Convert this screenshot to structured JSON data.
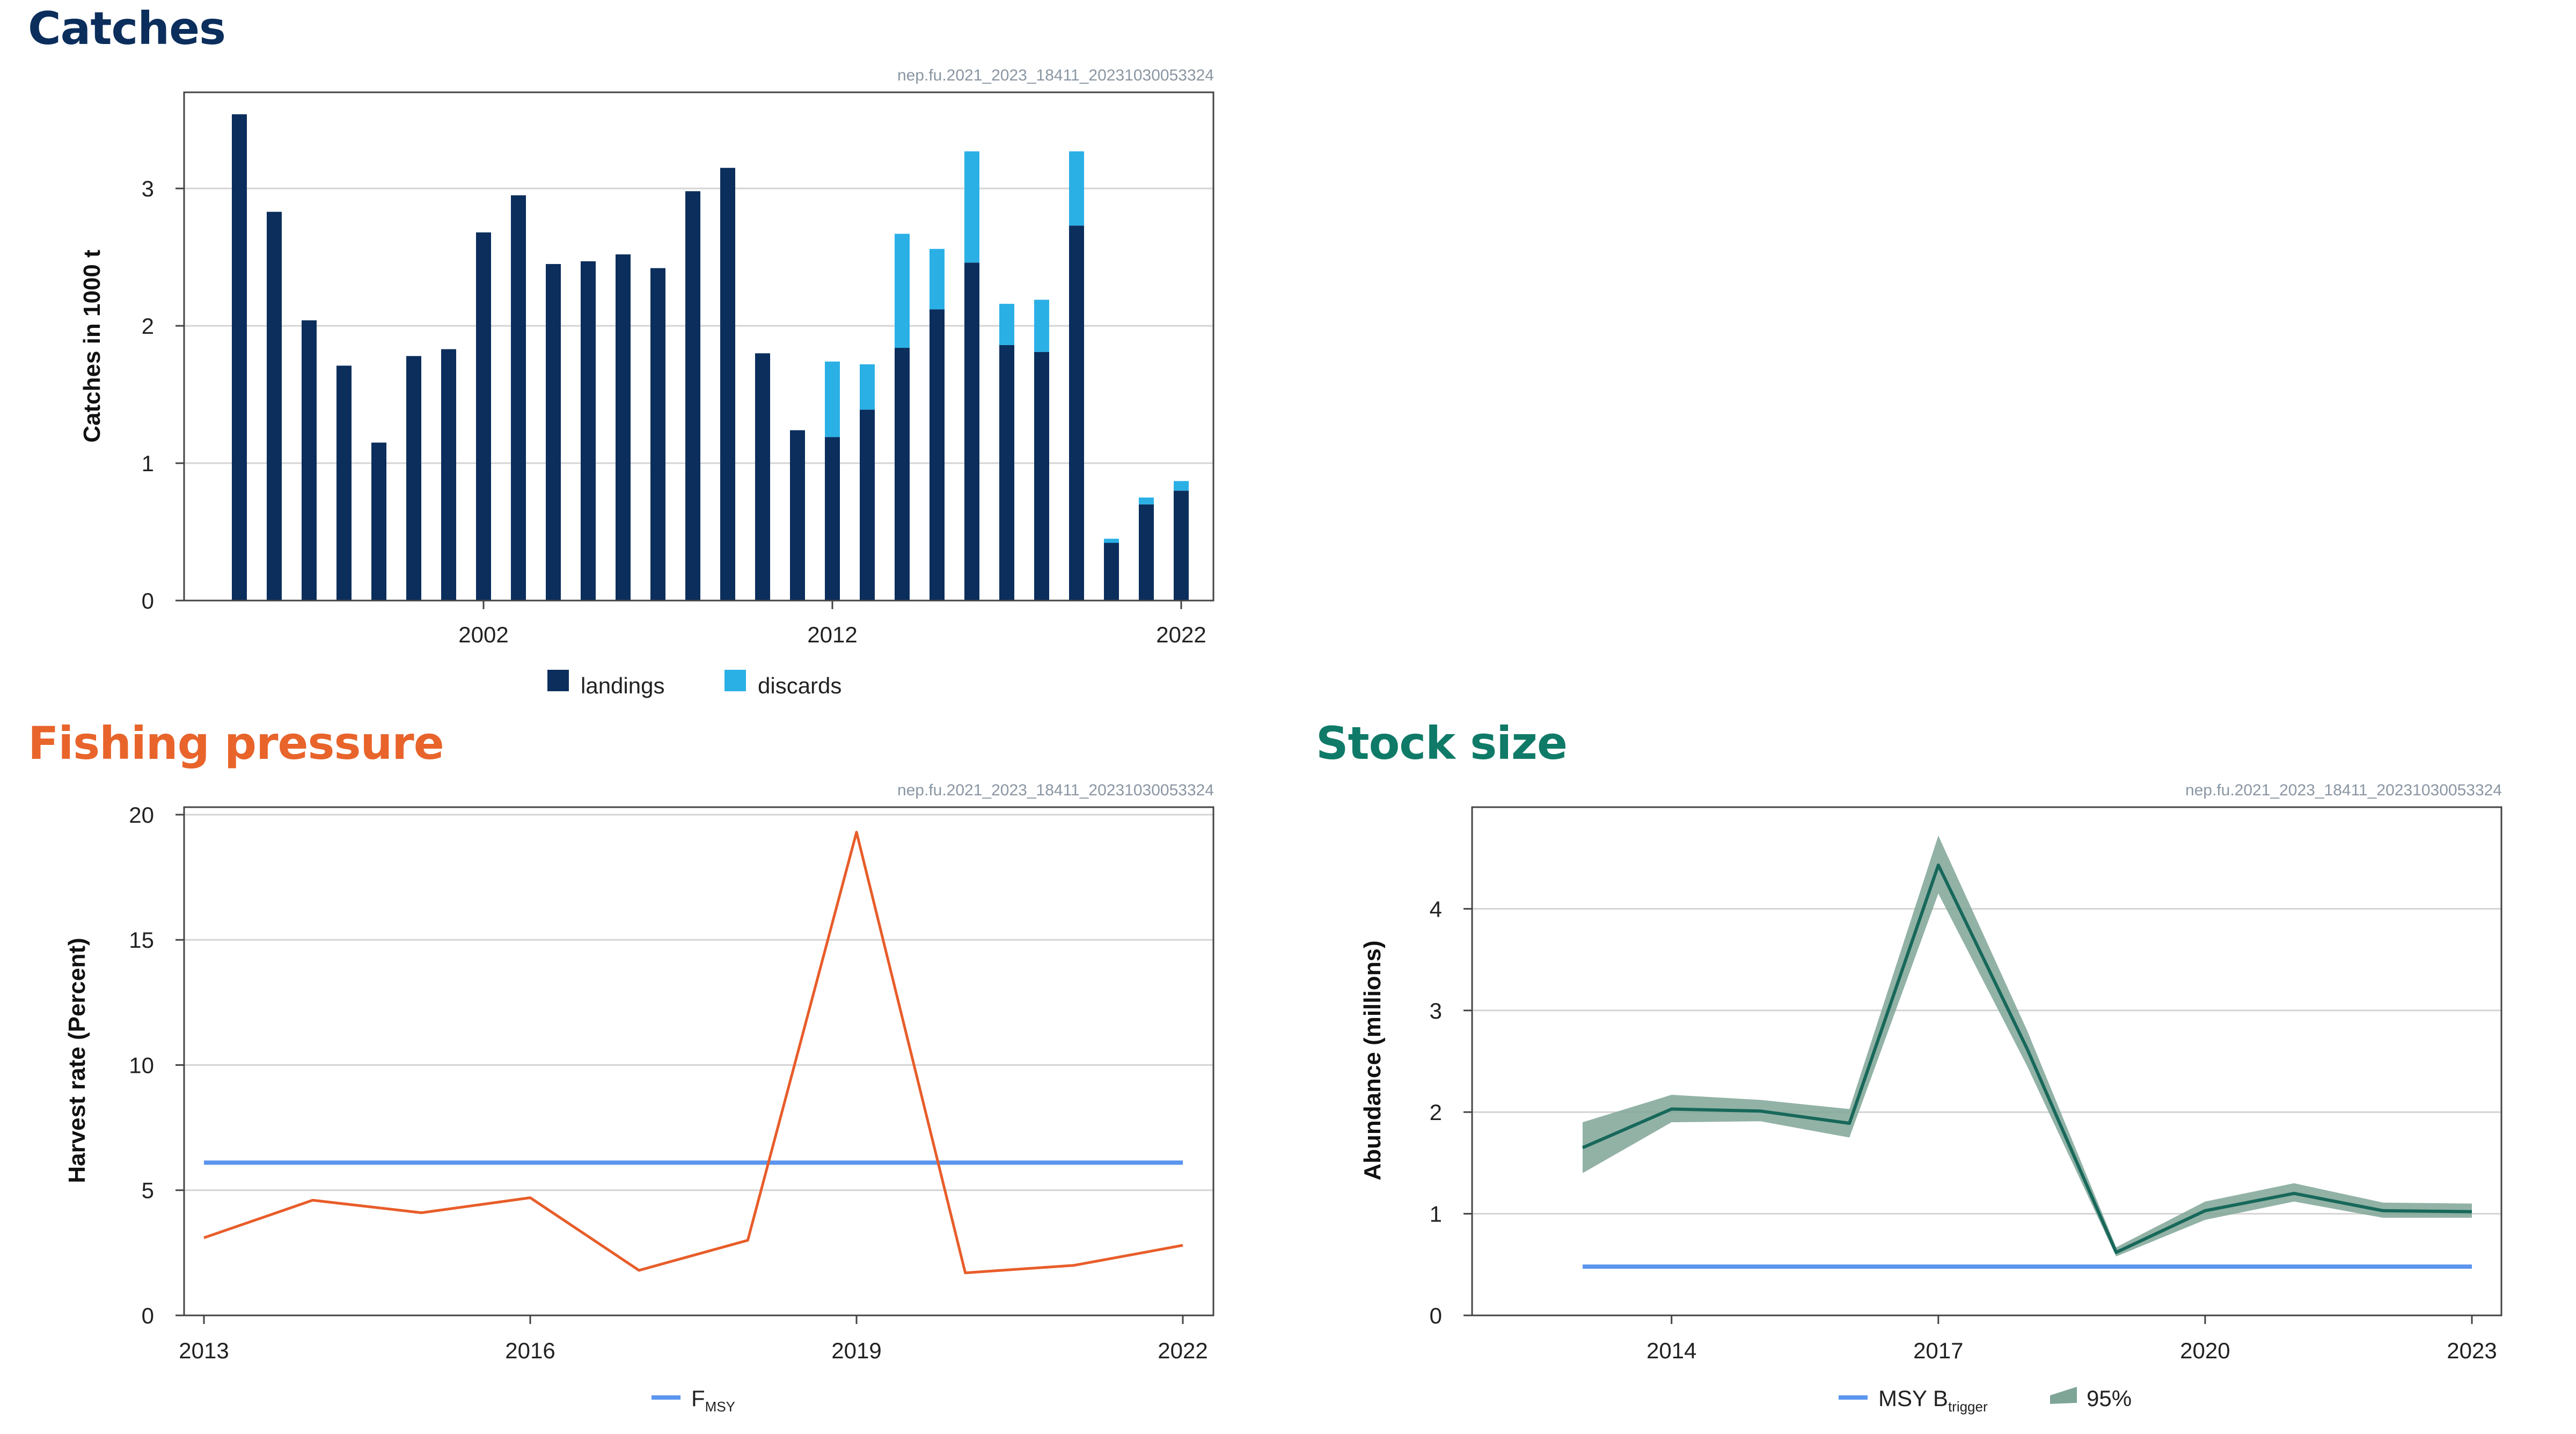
{
  "colors": {
    "catches_title": "#0b2e5c",
    "fishing_title": "#e8642b",
    "stock_title": "#0f7a68",
    "landings": "#0b2e5c",
    "discards": "#2bb0e6",
    "harvest_line": "#e85d2a",
    "reference_line": "#5b95ee",
    "abundance_line": "#17685a",
    "abundance_band": "#7fa597",
    "grid": "#d4d4d4"
  },
  "catches": {
    "title": "Catches",
    "stamp": "nep.fu.2021_2023_18411_20231030053324",
    "legend": {
      "landings": "landings",
      "discards": "discards"
    }
  },
  "fishing": {
    "title": "Fishing pressure",
    "stamp": "nep.fu.2021_2023_18411_20231030053324",
    "legend": {
      "fmsy_main": "F",
      "fmsy_sub": "MSY"
    }
  },
  "stock": {
    "title": "Stock size",
    "stamp": "nep.fu.2021_2023_18411_20231030053324",
    "legend": {
      "msy_main": "MSY B",
      "msy_sub": "trigger",
      "ci": "95%"
    }
  },
  "chart_data": [
    {
      "type": "bar",
      "stacked": true,
      "ylabel": "Catches in 1000 t",
      "xlabel": "",
      "years": [
        1995,
        1996,
        1997,
        1998,
        1999,
        2000,
        2001,
        2002,
        2003,
        2004,
        2005,
        2006,
        2007,
        2008,
        2009,
        2010,
        2011,
        2012,
        2013,
        2014,
        2015,
        2016,
        2017,
        2018,
        2019,
        2020,
        2021,
        2022
      ],
      "xticks": [
        2002,
        2012,
        2022
      ],
      "ylim": [
        0,
        3.7
      ],
      "yticks": [
        0,
        1,
        2,
        3
      ],
      "series": [
        {
          "name": "landings",
          "values": [
            3.54,
            2.83,
            2.04,
            1.71,
            1.15,
            1.78,
            1.83,
            2.68,
            2.95,
            2.45,
            2.47,
            2.52,
            2.42,
            2.98,
            3.15,
            1.8,
            1.24,
            1.19,
            1.39,
            1.84,
            2.12,
            2.46,
            1.86,
            1.81,
            2.73,
            0.42,
            0.7,
            0.8
          ]
        },
        {
          "name": "discards",
          "values": [
            0,
            0,
            0,
            0,
            0,
            0,
            0,
            0,
            0,
            0,
            0,
            0,
            0,
            0,
            0,
            0,
            0,
            0.55,
            0.33,
            0.83,
            0.44,
            0.81,
            0.3,
            0.38,
            0.54,
            0.03,
            0.05,
            0.07
          ]
        }
      ],
      "grid": true
    },
    {
      "type": "line",
      "ylabel": "Harvest rate (Percent)",
      "xlabel": "",
      "x": [
        2013,
        2014,
        2015,
        2016,
        2017,
        2018,
        2019,
        2020,
        2021,
        2022
      ],
      "xticks": [
        2013,
        2016,
        2019,
        2022
      ],
      "ylim": [
        0,
        20.3
      ],
      "yticks": [
        0,
        5,
        10,
        15,
        20
      ],
      "series": [
        {
          "name": "harvest rate",
          "values": [
            3.1,
            4.6,
            4.1,
            4.7,
            1.8,
            3.0,
            19.3,
            1.7,
            2.0,
            2.8
          ]
        }
      ],
      "reference": {
        "name": "FMSY",
        "value": 6.1
      },
      "grid": true
    },
    {
      "type": "line",
      "ylabel": "Abundance (millions)",
      "xlabel": "",
      "x": [
        2013,
        2014,
        2015,
        2016,
        2017,
        2018,
        2019,
        2020,
        2021,
        2022,
        2023
      ],
      "xticks": [
        2014,
        2017,
        2020,
        2023
      ],
      "ylim": [
        0,
        5.0
      ],
      "yticks": [
        0,
        1,
        2,
        3,
        4
      ],
      "series": [
        {
          "name": "abundance",
          "values": [
            1.65,
            2.03,
            2.01,
            1.89,
            4.43,
            2.62,
            0.62,
            1.03,
            1.2,
            1.03,
            1.02
          ],
          "lower": [
            1.4,
            1.9,
            1.91,
            1.75,
            4.15,
            2.45,
            0.58,
            0.94,
            1.12,
            0.96,
            0.96
          ],
          "upper": [
            1.9,
            2.17,
            2.12,
            2.03,
            4.72,
            2.8,
            0.67,
            1.12,
            1.3,
            1.11,
            1.1
          ]
        }
      ],
      "reference": {
        "name": "MSY Btrigger",
        "value": 0.48
      },
      "grid": true
    }
  ]
}
